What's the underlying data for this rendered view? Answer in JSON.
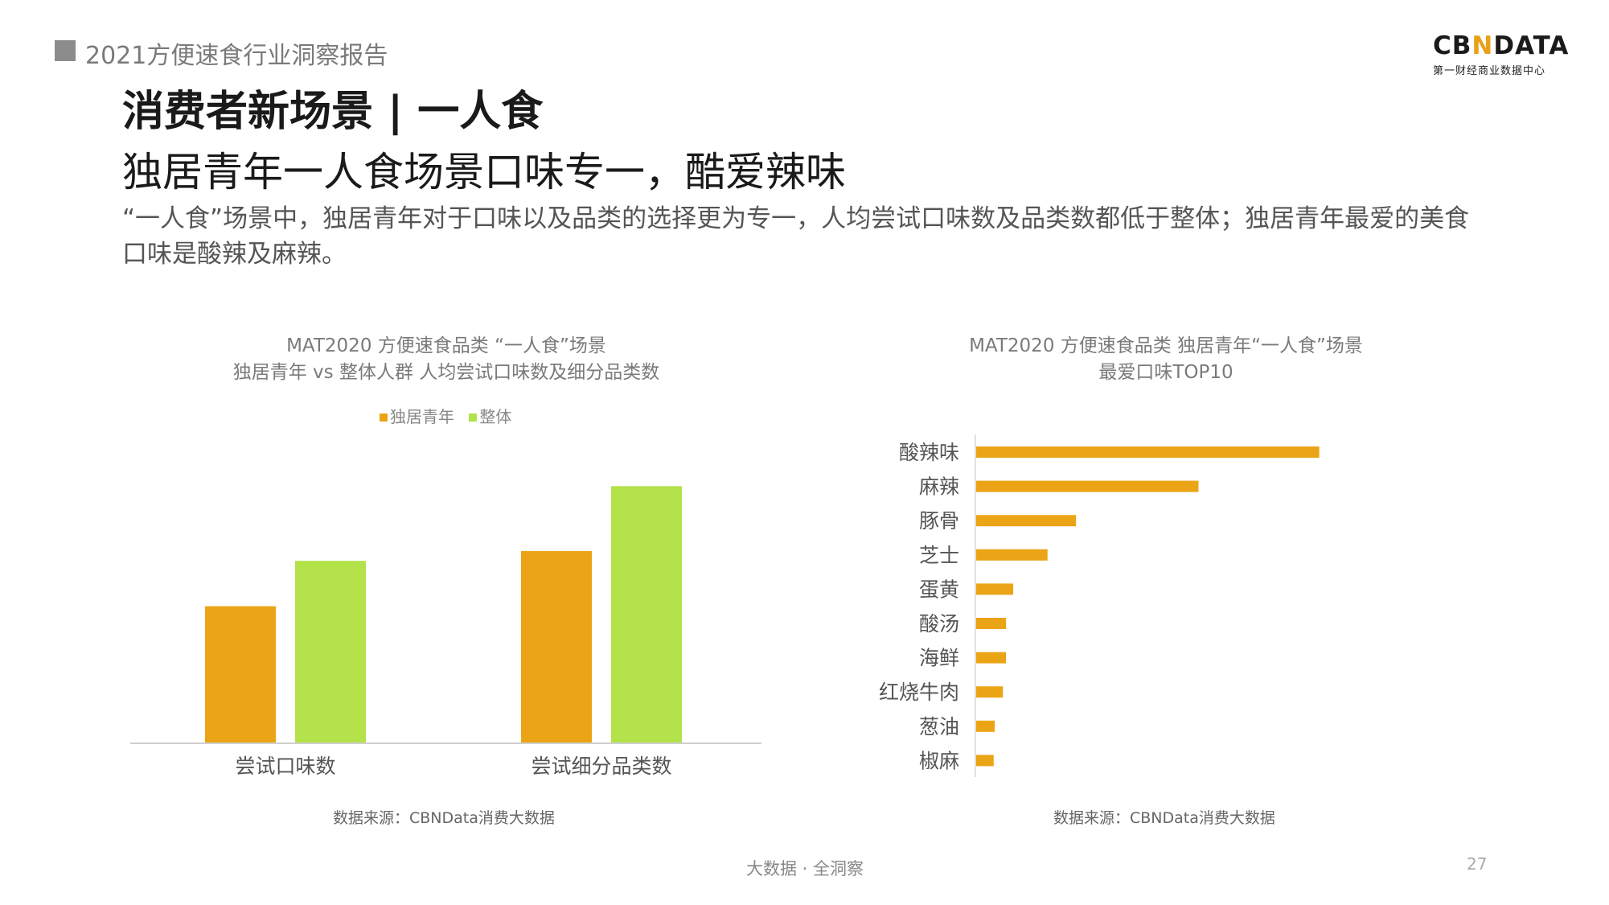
{
  "header": {
    "report_title": "2021方便速食行业洞察报告",
    "logo_text_left": "CB",
    "logo_text_mid": "N",
    "logo_text_right": "DATA",
    "logo_subtitle": "第一财经商业数据中心"
  },
  "title": "消费者新场景 | 一人食",
  "subtitle": "独居青年一人食场景口味专一，酷爱辣味",
  "description": "“一人食”场景中，独居青年对于口味以及品类的选择更为专一，人均尝试口味数及品类数都低于整体；独居青年最爱的美食口味是酸辣及麻辣。",
  "colors": {
    "orange": "#eba416",
    "green": "#b3e24a"
  },
  "chart_data": [
    {
      "type": "bar",
      "title_line1": "MAT2020 方便速食品类 “一人食”场景",
      "title_line2": "独居青年 vs 整体人群 人均尝试口味数及细分品类数",
      "categories": [
        "尝试口味数",
        "尝试细分品类数"
      ],
      "series": [
        {
          "name": "独居青年",
          "values": [
            2.1,
            2.95
          ]
        },
        {
          "name": "整体",
          "values": [
            2.8,
            3.95
          ]
        }
      ],
      "ylim": [
        0,
        4.5
      ],
      "legend": "top-center",
      "grid": false,
      "source": "数据来源：CBNData消费大数据"
    },
    {
      "type": "bar",
      "orientation": "horizontal",
      "title_line1": "MAT2020 方便速食品类 独居青年“一人食”场景",
      "title_line2": "最爱口味TOP10",
      "categories": [
        "酸辣味",
        "麻辣",
        "豚骨",
        "芝士",
        "蛋黄",
        "酸汤",
        "海鲜",
        "红烧牛肉",
        "葱油",
        "椒麻"
      ],
      "values": [
        100,
        64.8,
        29.1,
        20.8,
        10.8,
        8.7,
        8.7,
        7.8,
        5.4,
        5.1
      ],
      "xlim": [
        0,
        150
      ],
      "grid": false,
      "source": "数据来源：CBNData消费大数据"
    }
  ],
  "footer": {
    "text": "大数据 · 全洞察",
    "page_number": "27"
  }
}
